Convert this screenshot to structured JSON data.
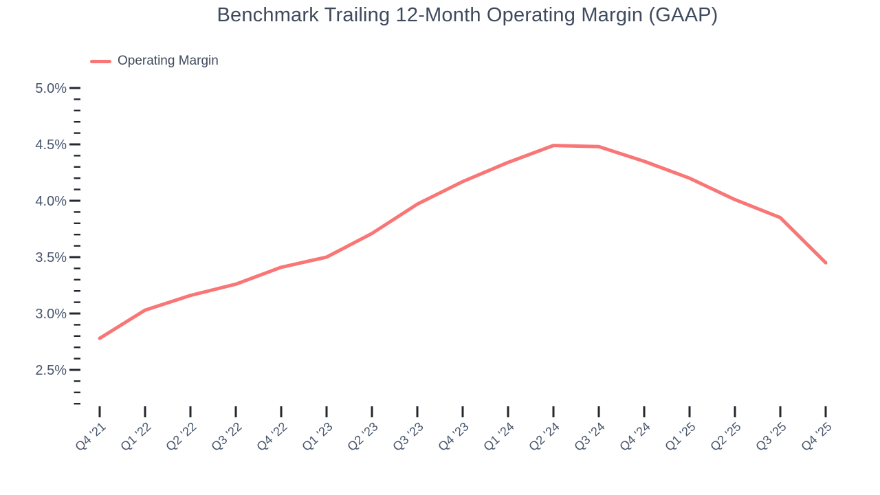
{
  "chart_data": {
    "type": "line",
    "title": "Benchmark Trailing 12-Month Operating Margin (GAAP)",
    "categories": [
      "Q4 '21",
      "Q1 '22",
      "Q2 '22",
      "Q3 '22",
      "Q4 '22",
      "Q1 '23",
      "Q2 '23",
      "Q3 '23",
      "Q4 '23",
      "Q1 '24",
      "Q2 '24",
      "Q3 '24",
      "Q4 '24",
      "Q1 '25",
      "Q2 '25",
      "Q3 '25",
      "Q4 '25"
    ],
    "series": [
      {
        "name": "Operating Margin",
        "color": "#F97676",
        "unit": "%",
        "values": [
          2.78,
          3.03,
          3.16,
          3.26,
          3.41,
          3.5,
          3.71,
          3.97,
          4.17,
          4.34,
          4.49,
          4.48,
          4.35,
          4.2,
          4.01,
          3.85,
          3.45
        ]
      }
    ],
    "xlabel": "",
    "ylabel": "",
    "y_axis": {
      "major_ticks": [
        5.0,
        4.5,
        4.0,
        3.5,
        3.0,
        2.5
      ],
      "tick_labels": [
        "5.0%",
        "4.5%",
        "4.0%",
        "3.5%",
        "3.0%",
        "2.5%"
      ],
      "minor_tick_step": 0.1,
      "min": 2.2,
      "max": 5.0,
      "unit": "%"
    },
    "x_axis": {
      "label_rotation_deg": -42
    },
    "ylim": [
      2.2,
      5.0
    ],
    "grid": false,
    "legend_position": "top-left"
  },
  "colors": {
    "line": "#F97676",
    "title_text": "#3E4A5C",
    "axis_label_text": "#48556B",
    "tick_mark": "#23272E",
    "background": "#FFFFFF"
  }
}
